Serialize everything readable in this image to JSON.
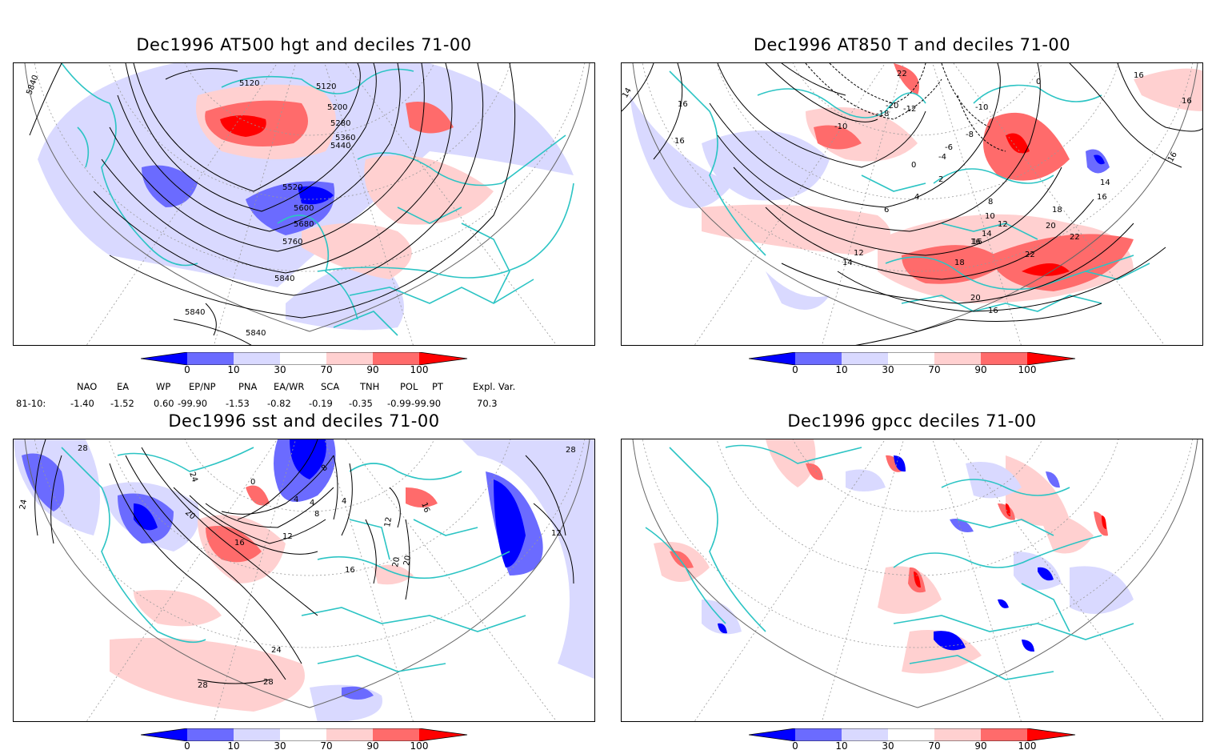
{
  "panels": [
    {
      "title": "Dec1996 AT500 hgt and deciles 71-00",
      "contour_labels": [
        "5840",
        "5120",
        "5120",
        "5200",
        "5280",
        "5360",
        "5440",
        "5520",
        "5600",
        "5680",
        "5760",
        "5840",
        "5840",
        "5840"
      ]
    },
    {
      "title": "Dec1996 AT850 T and deciles 71-00",
      "contour_labels": [
        "14",
        "16",
        "16",
        "22",
        "-20",
        "-18",
        "-12",
        "-10",
        "-10",
        "0",
        "16",
        "16",
        "16",
        "-8",
        "-6",
        "-4",
        "0",
        "2",
        "4",
        "6",
        "8",
        "10",
        "12",
        "14",
        "16",
        "18",
        "20",
        "22",
        "22",
        "12",
        "14",
        "16",
        "18",
        "20",
        "16",
        "14",
        "16"
      ]
    },
    {
      "title": "Dec1996 sst and deciles 71-00",
      "contour_labels": [
        "28",
        "24",
        "24",
        "20",
        "16",
        "12",
        "8",
        "4",
        "4",
        "0",
        "8",
        "4",
        "12",
        "16",
        "20",
        "24",
        "28",
        "28",
        "28",
        "12",
        "20",
        "16"
      ]
    },
    {
      "title": "Dec1996 gpcc deciles 71-00",
      "contour_labels": []
    }
  ],
  "colorbar": {
    "ticks": [
      "0",
      "10",
      "30",
      "70",
      "90",
      "100"
    ],
    "colors": [
      "#0000ff",
      "#6b6bff",
      "#d9d9ff",
      "#ffffff",
      "#ffd0d0",
      "#ff6b6b",
      "#ff0000"
    ]
  },
  "indices": {
    "headers": [
      "NAO",
      "EA",
      "WP",
      "EP/NP",
      "PNA",
      "EA/WR",
      "SCA",
      "TNH",
      "POL",
      "PT",
      "Expl. Var."
    ],
    "row_label": "81-10:",
    "values": [
      "-1.40",
      "-1.52",
      "0.60",
      "-99.90",
      "-1.53",
      "-0.82",
      "-0.19",
      "-0.35",
      "-0.99",
      "-99.90",
      "70.3"
    ]
  },
  "colors": {
    "coast": "#2cc4c4",
    "grid": "#999999",
    "contour": "#000000"
  }
}
